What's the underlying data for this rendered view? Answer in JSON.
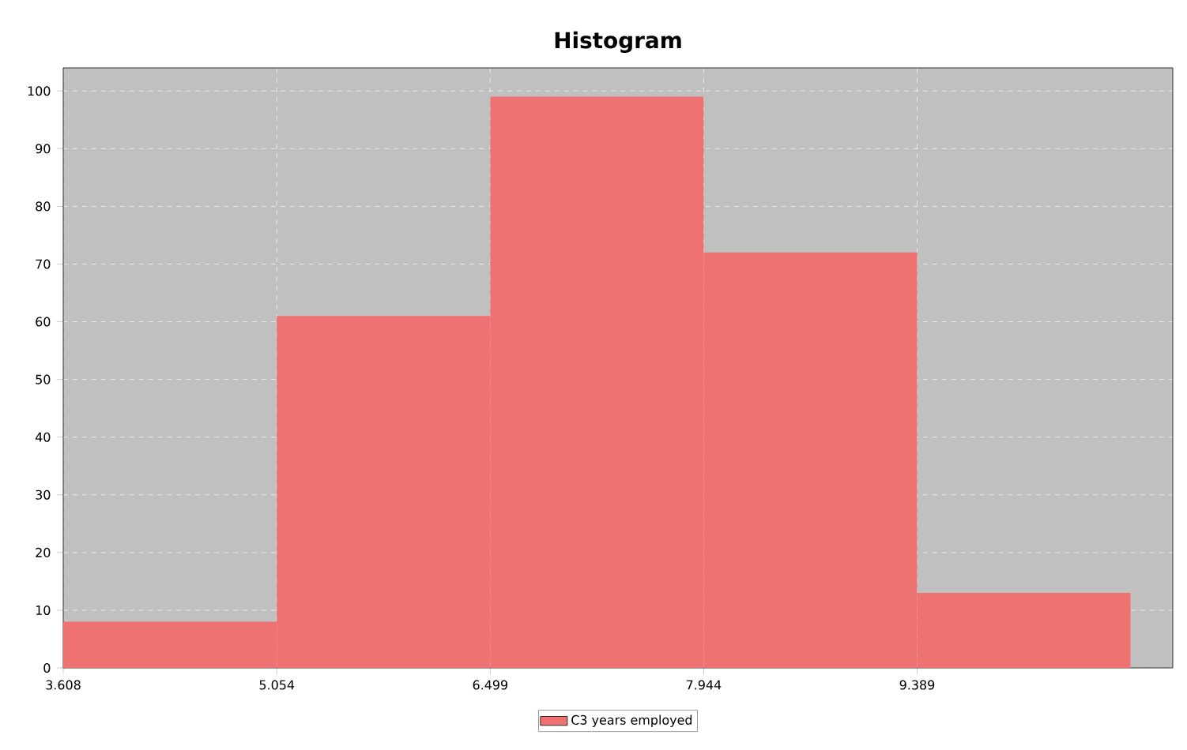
{
  "chart_data": {
    "type": "histogram",
    "title": "Histogram",
    "bins": [
      3.608,
      5.054,
      6.499,
      7.944,
      9.389,
      10.834
    ],
    "series": [
      {
        "name": "C3  years employed",
        "color": "#ee7272",
        "values": [
          8,
          61,
          99,
          72,
          13
        ]
      }
    ],
    "xlim": [
      3.608,
      11.12
    ],
    "ylim": [
      0,
      104
    ],
    "xticks": [
      3.608,
      5.054,
      6.499,
      7.944,
      9.389
    ],
    "yticks": [
      0,
      10,
      20,
      30,
      40,
      50,
      60,
      70,
      80,
      90,
      100
    ],
    "grid": true,
    "legend": "bottom"
  }
}
